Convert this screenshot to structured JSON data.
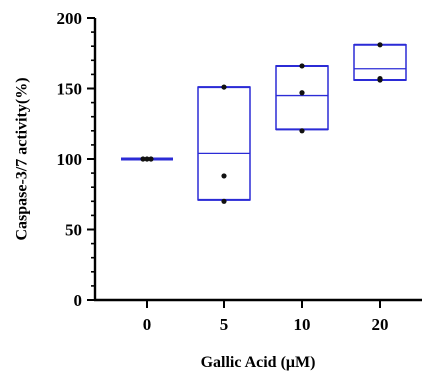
{
  "chart_data": {
    "type": "box",
    "title": "",
    "xlabel": "Gallic Acid (μM)",
    "ylabel": "Caspase-3/7 activity(%)",
    "ylim": [
      0,
      200
    ],
    "yticks": [
      "0",
      "50",
      "100",
      "150",
      "200"
    ],
    "grid": false,
    "legend": "none",
    "box_color": "#2b2bd6",
    "point_color": "#111111",
    "categories": [
      "0",
      "5",
      "10",
      "20"
    ],
    "boxes": [
      {
        "category": "0",
        "min": 100,
        "q1": 100,
        "median": 100,
        "q3": 100,
        "max": 100,
        "points": [
          100,
          100,
          100
        ]
      },
      {
        "category": "5",
        "min": 70,
        "q1": 71,
        "median": 104,
        "q3": 151,
        "max": 151,
        "points": [
          151,
          88,
          70
        ]
      },
      {
        "category": "10",
        "min": 120,
        "q1": 121,
        "median": 145,
        "q3": 166,
        "max": 166,
        "points": [
          166,
          147,
          120
        ]
      },
      {
        "category": "20",
        "min": 156,
        "q1": 156,
        "median": 164,
        "q3": 181,
        "max": 181,
        "points": [
          181,
          157,
          156
        ]
      }
    ]
  }
}
